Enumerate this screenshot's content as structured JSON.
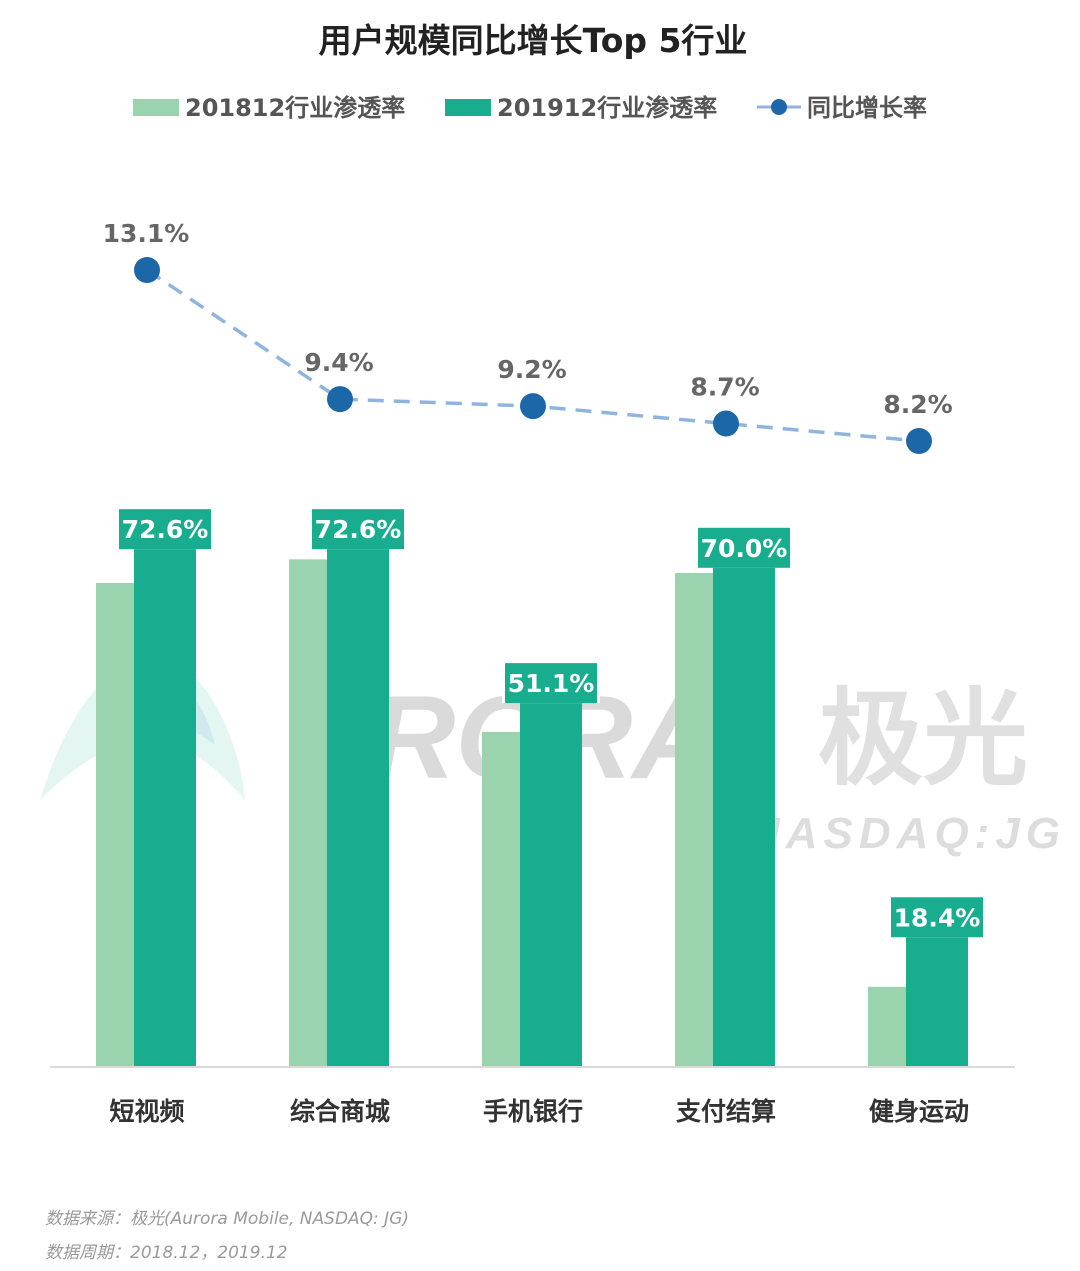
{
  "chart_data": {
    "type": "bar",
    "title": "用户规模同比增长Top 5行业",
    "categories": [
      "短视频",
      "综合商城",
      "手机银行",
      "支付结算",
      "健身运动"
    ],
    "series": [
      {
        "name": "201812行业渗透率",
        "type": "bar",
        "color": "#99d4ae",
        "values": [
          67.6,
          70.9,
          46.8,
          69.0,
          11.2
        ]
      },
      {
        "name": "201912行业渗透率",
        "type": "bar",
        "color": "#19ad8f",
        "values": [
          72.6,
          72.6,
          51.1,
          70.0,
          18.4
        ],
        "labels": [
          "72.6%",
          "72.6%",
          "51.1%",
          "70.0%",
          "18.4%"
        ]
      },
      {
        "name": "同比增长率",
        "type": "line",
        "color": "#1c67a7",
        "line_color": "#8fb4e0",
        "values": [
          13.1,
          9.4,
          9.2,
          8.7,
          8.2
        ],
        "labels": [
          "13.1%",
          "9.4%",
          "9.2%",
          "8.7%",
          "8.2%"
        ]
      }
    ],
    "legend": "top",
    "grid": false
  },
  "watermark": {
    "brand": "URORA",
    "brand_cn": "极光",
    "sub": "NASDAQ:JG"
  },
  "notes": {
    "source": "数据来源：极光(Aurora Mobile, NASDAQ: JG)",
    "period": "数据周期：2018.12，2019.12"
  }
}
